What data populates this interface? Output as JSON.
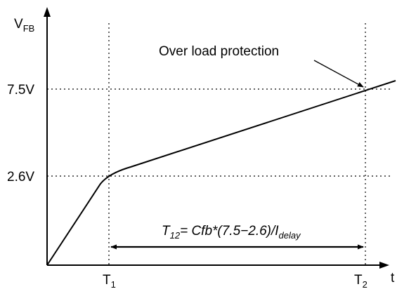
{
  "diagram": {
    "y_axis_label": {
      "main": "V",
      "sub": "FB"
    },
    "x_axis_label": "t",
    "y_levels": [
      "7.5V",
      "2.6V"
    ],
    "time_markers": [
      {
        "main": "T",
        "sub": "1"
      },
      {
        "main": "T",
        "sub": "2"
      }
    ],
    "annotation": "Over load protection",
    "formula": {
      "t": "T",
      "t_sub": "12",
      "body": "= Cfb*(7.5−2.6)/I",
      "i_sub": "delay"
    },
    "curve_vertices": [
      {
        "time": "0",
        "voltage": "0"
      },
      {
        "time": "T1",
        "voltage": "2.6V"
      },
      {
        "time": "T2",
        "voltage": "7.5V"
      }
    ]
  }
}
